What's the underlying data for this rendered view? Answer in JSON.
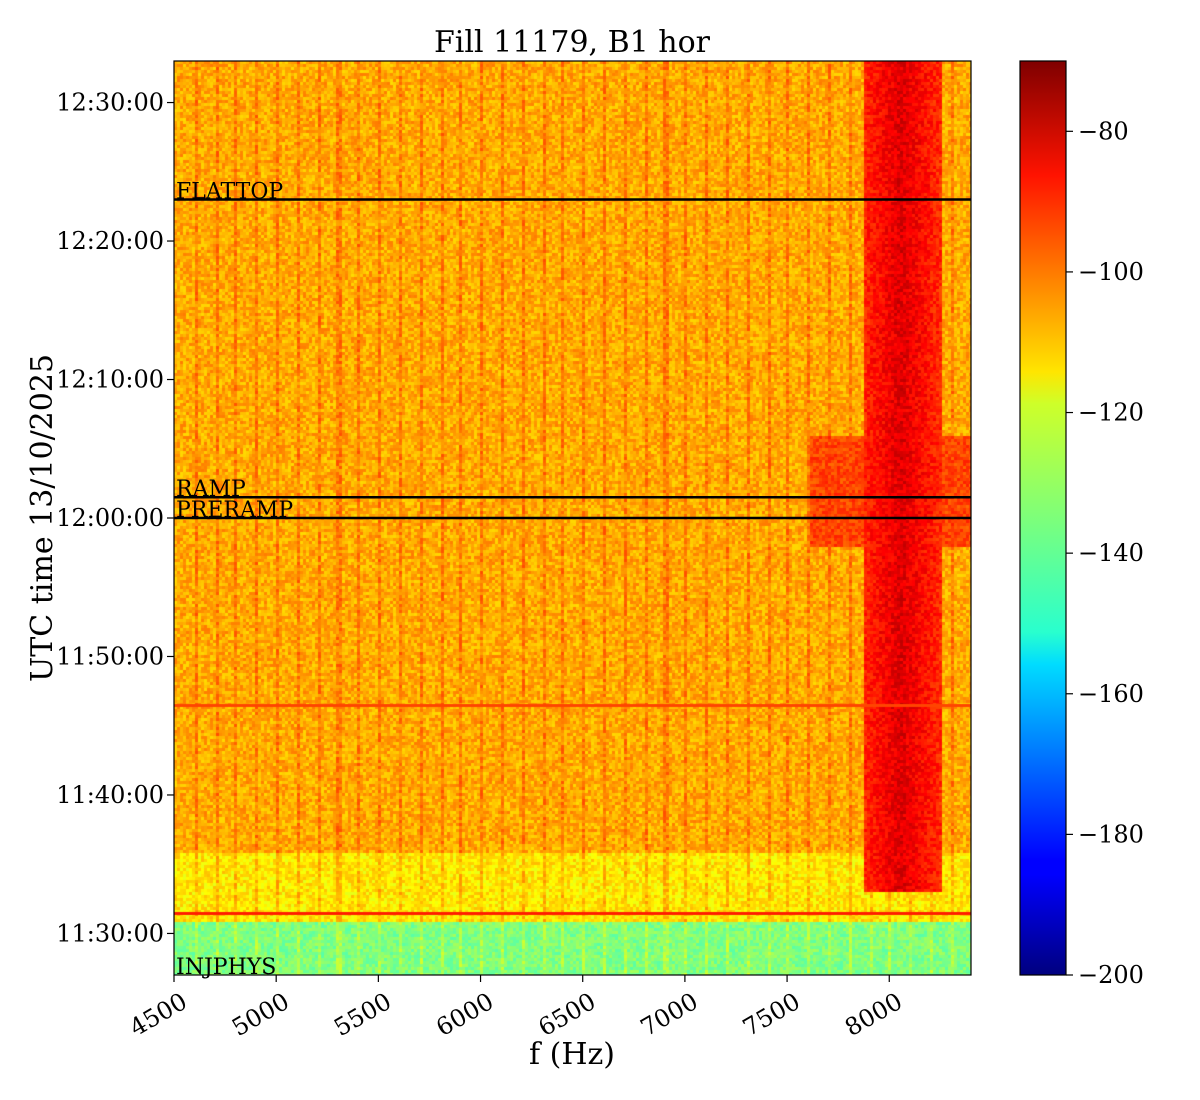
{
  "chart_data": {
    "type": "heatmap",
    "title": "Fill 11179, B1 hor",
    "xlabel": "f (Hz)",
    "ylabel": "UTC time 13/10/2025",
    "xlim": [
      4500,
      8400
    ],
    "ylim": [
      "11:27:00",
      "12:33:00"
    ],
    "x_ticks": [
      4500,
      5000,
      5500,
      6000,
      6500,
      7000,
      7500,
      8000
    ],
    "x_tick_labels": [
      "4500",
      "5000",
      "5500",
      "6000",
      "6500",
      "7000",
      "7500",
      "8000"
    ],
    "y_ticks": [
      "11:30:00",
      "11:40:00",
      "11:50:00",
      "12:00:00",
      "12:10:00",
      "12:20:00",
      "12:30:00"
    ],
    "colorbar": {
      "colormap": "jet",
      "range": [
        -200,
        -70
      ],
      "ticks": [
        -80,
        -100,
        -120,
        -140,
        -160,
        -180,
        -200
      ],
      "tick_labels": [
        "−80",
        "−100",
        "−120",
        "−140",
        "−160",
        "−180",
        "−200"
      ]
    },
    "markers": [
      {
        "label": "FLATTOP",
        "time": "12:23:00"
      },
      {
        "label": "RAMP",
        "time": "12:01:30"
      },
      {
        "label": "PRERAMP",
        "time": "12:00:00"
      },
      {
        "label": "INJPHYS",
        "time": "11:27:00"
      }
    ],
    "notable_features": [
      {
        "description_level": "background level (dB)",
        "value": -108
      },
      {
        "description_level": "strong line near 8050 Hz (dB)",
        "value": -82
      },
      {
        "description_level": "early segment before 11:31 (dB)",
        "value": -135
      }
    ]
  }
}
